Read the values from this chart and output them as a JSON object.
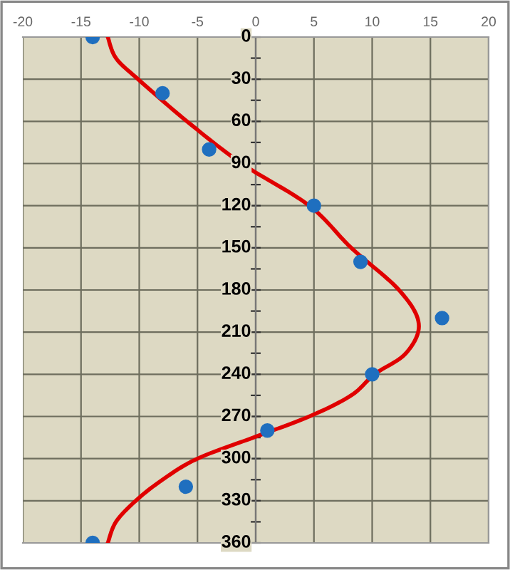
{
  "chart_data": {
    "type": "scatter",
    "series": [
      {
        "color": "#1f6fbf",
        "marker": "circle",
        "x": [
          -14,
          -8,
          -4,
          5,
          9,
          16,
          10,
          1,
          -6,
          -14
        ],
        "values": [
          0,
          40,
          80,
          120,
          160,
          200,
          240,
          280,
          320,
          360
        ]
      },
      {
        "type": "line",
        "color": "#e00000",
        "marker": "none",
        "line_style": "solid",
        "x": [
          -12.7,
          -12.0,
          -10.1,
          -5.9,
          -1.2,
          4.6,
          8.2,
          12.3,
          14,
          12.9,
          10.2,
          8.2,
          4.6,
          -0.2,
          -5,
          -8,
          -10.3,
          -12,
          -12.7
        ],
        "values": [
          0,
          15,
          30,
          60,
          90,
          120,
          150,
          180,
          204,
          225,
          240,
          255,
          270,
          285,
          300,
          315,
          330,
          345,
          360
        ]
      }
    ],
    "xlim": [
      -20,
      20
    ],
    "xticks": [
      -20,
      -15,
      -10,
      -5,
      0,
      5,
      10,
      15,
      20
    ],
    "ylim": [
      360,
      0
    ],
    "yticks": [
      0,
      {
        "value": 15,
        "label": null
      },
      30,
      {
        "value": 45,
        "label": null
      },
      60,
      {
        "value": 75,
        "label": null
      },
      90,
      {
        "value": 105,
        "label": null
      },
      120,
      {
        "value": 135,
        "label": null
      },
      150,
      {
        "value": 165,
        "label": null
      },
      180,
      {
        "value": 195,
        "label": null
      },
      210,
      {
        "value": 225,
        "label": null
      },
      240,
      {
        "value": 255,
        "label": null
      },
      270,
      {
        "value": 285,
        "label": null
      },
      300,
      {
        "value": 315,
        "label": null
      },
      330,
      {
        "value": 345,
        "label": null
      },
      360
    ],
    "grid": true
  }
}
